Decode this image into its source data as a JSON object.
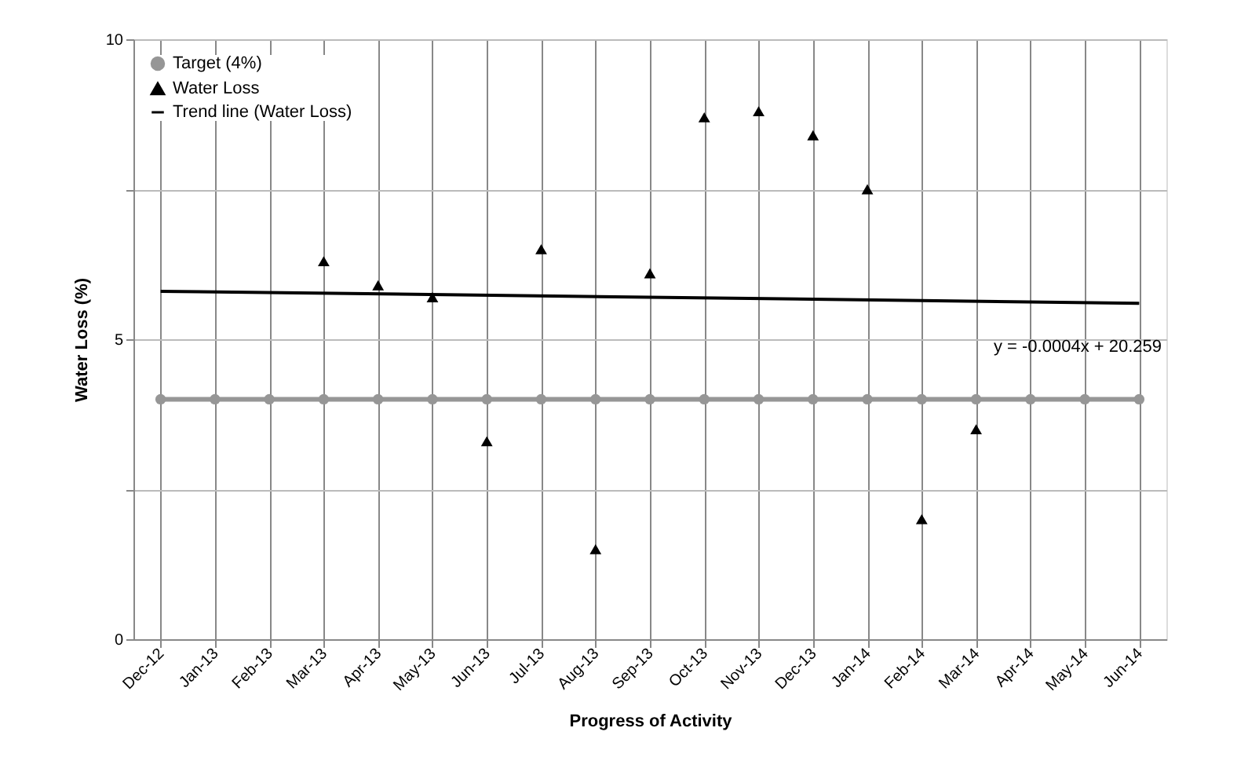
{
  "chart_data": {
    "type": "line",
    "xlabel": "Progress of Activity",
    "ylabel": "Water Loss (%)",
    "categories": [
      "Dec-12",
      "Jan-13",
      "Feb-13",
      "Mar-13",
      "Apr-13",
      "May-13",
      "Jun-13",
      "Jul-13",
      "Aug-13",
      "Sep-13",
      "Oct-13",
      "Nov-13",
      "Dec-13",
      "Jan-14",
      "Feb-14",
      "Mar-14",
      "Apr-14",
      "May-14",
      "Jun-14"
    ],
    "series": [
      {
        "name": "Target (4%)",
        "marker": "circle",
        "color": "#969696",
        "values": [
          4,
          4,
          4,
          4,
          4,
          4,
          4,
          4,
          4,
          4,
          4,
          4,
          4,
          4,
          4,
          4,
          4,
          4,
          4
        ]
      },
      {
        "name": "Water Loss",
        "type": "scatter",
        "marker": "triangle",
        "color": "#000000",
        "values": [
          null,
          null,
          null,
          6.3,
          5.9,
          5.7,
          3.3,
          6.5,
          1.5,
          6.1,
          8.7,
          8.8,
          8.4,
          7.5,
          2.0,
          3.5,
          null,
          null,
          null
        ]
      },
      {
        "name": "Trend line (Water Loss)",
        "type": "line",
        "marker": "none",
        "color": "#000000",
        "x": [
          "Dec-12",
          "Jun-14"
        ],
        "values": [
          5.8,
          5.6
        ]
      }
    ],
    "annotations": [
      "y = -0.0004x + 20.259"
    ],
    "ylim": [
      0,
      10
    ],
    "yticks": [
      0,
      {
        "value": 2.5,
        "label": null
      },
      5,
      {
        "value": 7.5,
        "label": null
      },
      10
    ],
    "grid": true,
    "legend": "top left"
  }
}
